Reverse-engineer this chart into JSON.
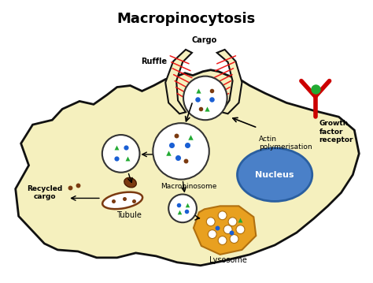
{
  "title": "Macropinocytosis",
  "title_fontsize": 13,
  "title_fontweight": "bold",
  "bg_color": "#ffffff",
  "cell_color": "#f5f0be",
  "cell_edge_color": "#111111",
  "nucleus_color": "#4a80c8",
  "nucleus_edge": "#2a5fa0",
  "lysosome_color": "#e8a020",
  "lysosome_edge": "#b07010",
  "ruffle_color": "#ee1111",
  "blue_dot": "#1a5fd4",
  "green_tri": "#22aa33",
  "brown_spot": "#7b3a10",
  "labels": {
    "ruffle": "Ruffle",
    "cargo": "Cargo",
    "macropinosome": "Macropinosome",
    "nucleus": "Nucleus",
    "lysosome": "Lysosome",
    "tubule": "Tubule",
    "recycled_cargo": "Recycled\ncargo",
    "actin": "Actin\npolymerisation",
    "growth_factor": "Growth\nfactor\nreceptor"
  }
}
